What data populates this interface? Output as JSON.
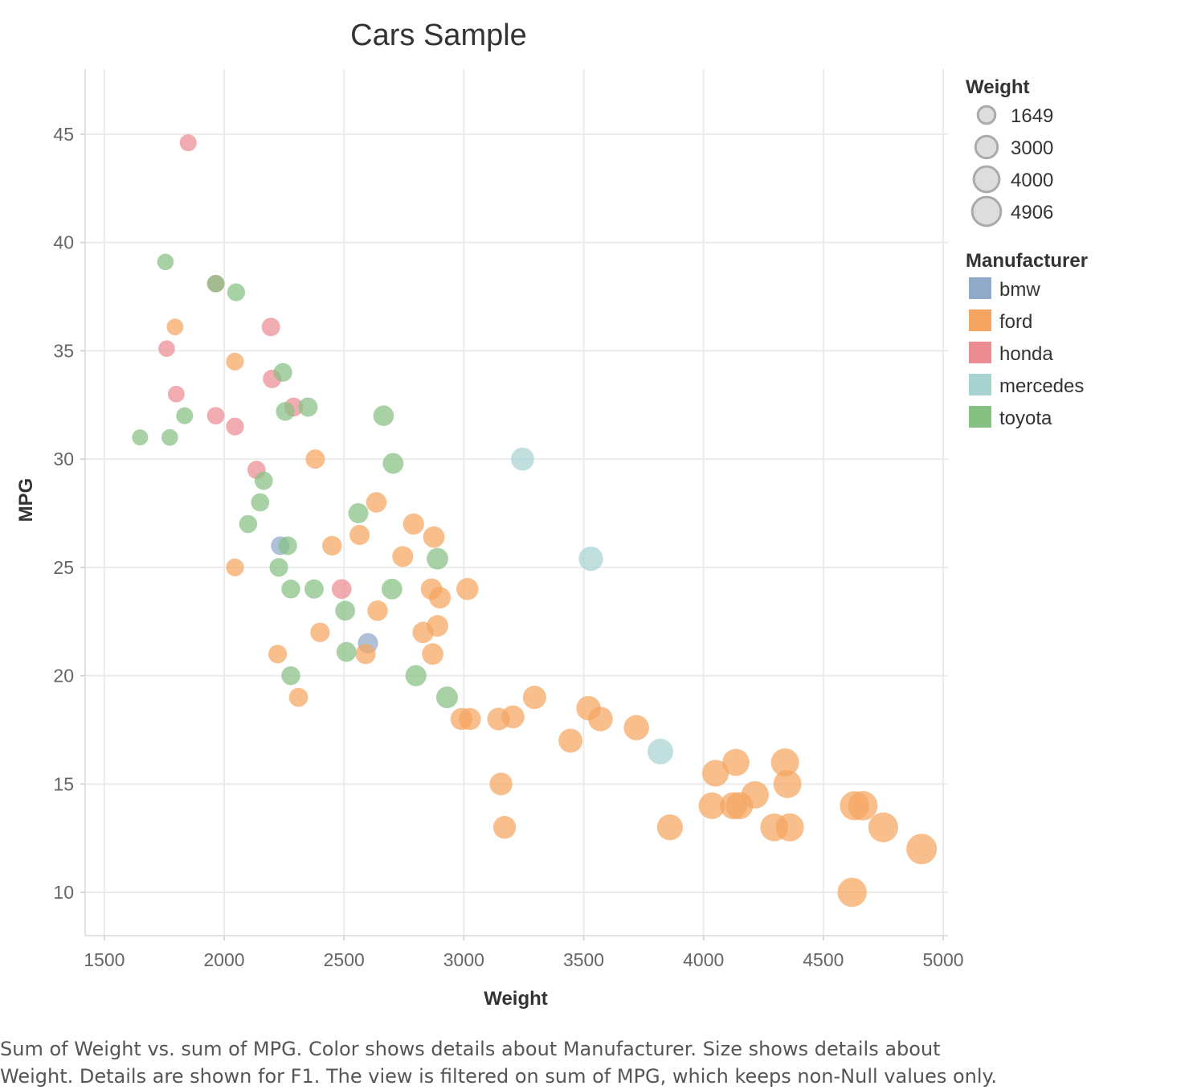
{
  "chart_data": {
    "type": "scatter",
    "title": "Cars Sample",
    "xlabel": "Weight",
    "ylabel": "MPG",
    "xlim": [
      1420,
      5020
    ],
    "ylim": [
      8,
      48
    ],
    "xticks": [
      1500,
      2000,
      2500,
      3000,
      3500,
      4000,
      4500,
      5000
    ],
    "yticks": [
      10,
      15,
      20,
      25,
      30,
      35,
      40,
      45
    ],
    "grid": true,
    "size_legend": {
      "title": "Weight",
      "entries": [
        1649,
        3000,
        4000,
        4906
      ]
    },
    "color_legend": {
      "title": "Manufacturer",
      "entries": [
        {
          "name": "bmw",
          "color": "#8FA9C9"
        },
        {
          "name": "ford",
          "color": "#F5A55F"
        },
        {
          "name": "honda",
          "color": "#EA8C91"
        },
        {
          "name": "mercedes",
          "color": "#A9D3D1"
        },
        {
          "name": "toyota",
          "color": "#86C183"
        }
      ]
    },
    "series": [
      {
        "name": "bmw",
        "color": "#8FA9C9",
        "points": [
          [
            2234,
            26
          ],
          [
            2600,
            21.5
          ]
        ]
      },
      {
        "name": "ford",
        "color": "#F5A55F",
        "points": [
          [
            1795,
            36.1
          ],
          [
            2045,
            34.5
          ],
          [
            2045,
            25
          ],
          [
            2223,
            21
          ],
          [
            2310,
            19
          ],
          [
            2380,
            30
          ],
          [
            2400,
            22
          ],
          [
            2450,
            26
          ],
          [
            2565,
            26.5
          ],
          [
            2590,
            21
          ],
          [
            2635,
            28
          ],
          [
            2640,
            23
          ],
          [
            2745,
            25.5
          ],
          [
            2790,
            27
          ],
          [
            2830,
            22
          ],
          [
            2865,
            24
          ],
          [
            2870,
            21
          ],
          [
            2875,
            26.4
          ],
          [
            2890,
            22.3
          ],
          [
            2900,
            23.6
          ],
          [
            2990,
            18
          ],
          [
            3015,
            24
          ],
          [
            3025,
            18
          ],
          [
            3145,
            18
          ],
          [
            3155,
            15
          ],
          [
            3170,
            13
          ],
          [
            3205,
            18.1
          ],
          [
            3295,
            19
          ],
          [
            3445,
            17
          ],
          [
            3520,
            18.5
          ],
          [
            3570,
            18
          ],
          [
            3720,
            17.6
          ],
          [
            3860,
            13
          ],
          [
            4035,
            14
          ],
          [
            4050,
            15.5
          ],
          [
            4125,
            14
          ],
          [
            4135,
            16
          ],
          [
            4150,
            14
          ],
          [
            4215,
            14.5
          ],
          [
            4295,
            13
          ],
          [
            4340,
            16
          ],
          [
            4350,
            15
          ],
          [
            4360,
            13
          ],
          [
            4620,
            10
          ],
          [
            4630,
            14
          ],
          [
            4665,
            14
          ],
          [
            4750,
            13
          ],
          [
            4910,
            12
          ]
        ]
      },
      {
        "name": "honda",
        "color": "#EA8C91",
        "points": [
          [
            1850,
            44.6
          ],
          [
            1760,
            35.1
          ],
          [
            1800,
            33
          ],
          [
            1965,
            38.1
          ],
          [
            1965,
            32
          ],
          [
            2045,
            31.5
          ],
          [
            2135,
            29.5
          ],
          [
            2195,
            36.1
          ],
          [
            2200,
            33.7
          ],
          [
            2290,
            32.4
          ],
          [
            2490,
            24
          ]
        ]
      },
      {
        "name": "mercedes",
        "color": "#A9D3D1",
        "points": [
          [
            3245,
            30
          ],
          [
            3530,
            25.4
          ],
          [
            3820,
            16.5
          ]
        ]
      },
      {
        "name": "toyota",
        "color": "#86C183",
        "points": [
          [
            1649,
            31
          ],
          [
            1755,
            39.1
          ],
          [
            1773,
            31
          ],
          [
            1835,
            32
          ],
          [
            1965,
            38.1
          ],
          [
            2050,
            37.7
          ],
          [
            2100,
            27
          ],
          [
            2150,
            28
          ],
          [
            2165,
            29
          ],
          [
            2228,
            25
          ],
          [
            2245,
            34
          ],
          [
            2255,
            32.2
          ],
          [
            2265,
            26
          ],
          [
            2278,
            24
          ],
          [
            2278,
            20
          ],
          [
            2350,
            32.4
          ],
          [
            2375,
            24
          ],
          [
            2505,
            23
          ],
          [
            2510,
            21.1
          ],
          [
            2560,
            27.5
          ],
          [
            2665,
            32
          ],
          [
            2700,
            24
          ],
          [
            2705,
            29.8
          ],
          [
            2800,
            20
          ],
          [
            2890,
            25.4
          ],
          [
            2930,
            19
          ]
        ]
      }
    ]
  },
  "caption": {
    "line1": "Sum of Weight vs. sum of MPG.  Color shows details about Manufacturer.  Size shows details about",
    "line2": "Weight.  Details are shown for F1. The view is filtered on sum of MPG, which keeps non-Null values only."
  }
}
